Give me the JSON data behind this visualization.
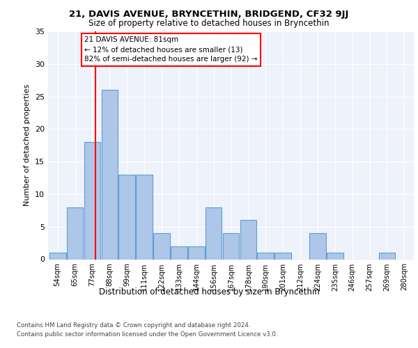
{
  "title1": "21, DAVIS AVENUE, BRYNCETHIN, BRIDGEND, CF32 9JJ",
  "title2": "Size of property relative to detached houses in Bryncethin",
  "xlabel": "Distribution of detached houses by size in Bryncethin",
  "ylabel": "Number of detached properties",
  "bins": [
    "54sqm",
    "65sqm",
    "77sqm",
    "88sqm",
    "99sqm",
    "111sqm",
    "122sqm",
    "133sqm",
    "144sqm",
    "156sqm",
    "167sqm",
    "178sqm",
    "190sqm",
    "201sqm",
    "212sqm",
    "224sqm",
    "235sqm",
    "246sqm",
    "257sqm",
    "269sqm",
    "280sqm"
  ],
  "values": [
    1,
    8,
    18,
    26,
    13,
    13,
    4,
    2,
    2,
    8,
    4,
    6,
    1,
    1,
    0,
    4,
    1,
    0,
    0,
    1,
    0
  ],
  "bar_color": "#aec6e8",
  "bar_edge_color": "#5a9fd4",
  "bar_edge_width": 0.8,
  "red_line_x": 2.18,
  "annotation_text": "21 DAVIS AVENUE: 81sqm\n← 12% of detached houses are smaller (13)\n82% of semi-detached houses are larger (92) →",
  "annotation_box_color": "white",
  "annotation_box_edge_color": "red",
  "ylim": [
    0,
    35
  ],
  "yticks": [
    0,
    5,
    10,
    15,
    20,
    25,
    30,
    35
  ],
  "footer1": "Contains HM Land Registry data © Crown copyright and database right 2024.",
  "footer2": "Contains public sector information licensed under the Open Government Licence v3.0.",
  "plot_bg_color": "#eef2fb"
}
